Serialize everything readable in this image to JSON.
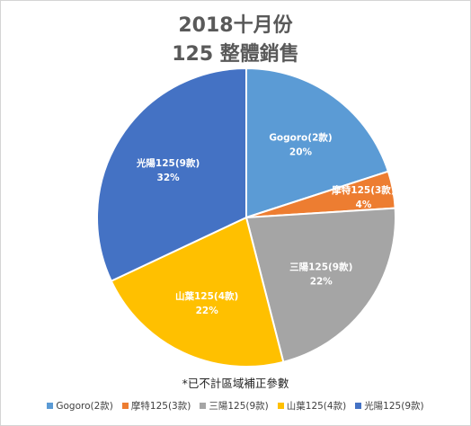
{
  "chart_data": {
    "type": "pie",
    "title": "2018十月份",
    "subtitle": "125 整體銷售",
    "note": "*已不計區域補正參數",
    "legend_position": "bottom",
    "slices": [
      {
        "name": "Gogoro(2款)",
        "value": 20,
        "label": "20%",
        "color": "#5b9bd5"
      },
      {
        "name": "摩特125(3款)",
        "value": 4,
        "label": "4%",
        "color": "#ed7d31"
      },
      {
        "name": "三陽125(9款)",
        "value": 22,
        "label": "22%",
        "color": "#a5a5a5"
      },
      {
        "name": "山葉125(4款)",
        "value": 22,
        "label": "22%",
        "color": "#ffc000"
      },
      {
        "name": "光陽125(9款)",
        "value": 32,
        "label": "32%",
        "color": "#4472c4"
      }
    ]
  }
}
